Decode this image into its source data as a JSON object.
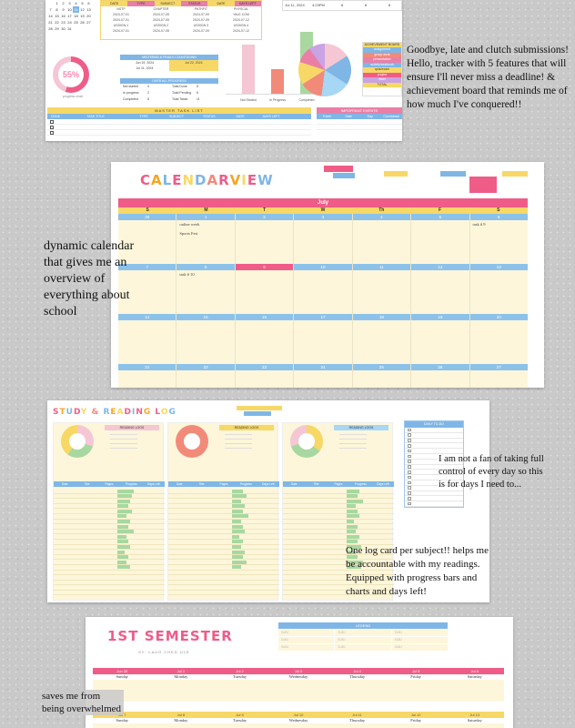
{
  "captions": {
    "tracker": "Goodbye, late and clutch submissions! Hello, tracker with 5 features that will ensure I'll never miss a deadline! & achievement board that reminds me of how much I've conquered!!",
    "calendar": "dynamic calendar that gives me an overview of everything about school",
    "not_fan": "I am not a fan of taking full control of every day so this is for days I need to...",
    "log": "One log card per subject!! helps me be accountable with my readings. Equipped with progress bars and charts and days left!",
    "semester": "saves me from being overwhelmed"
  },
  "dashboard": {
    "progress_pct": "55%",
    "progress_caption": "progress chart",
    "countdown_title": "MIDTERMS & FINALS COUNTDOWN",
    "countdown_rows": [
      [
        "Jun 19, 2024",
        "Jul 22, 2024"
      ],
      [
        "Jul 11, 2024",
        ""
      ]
    ],
    "overall_title": "OVER ALL PROGRESS",
    "overall_rows": [
      [
        "Not started",
        "4",
        "Total Done",
        "5"
      ],
      [
        "In progress",
        "2",
        "Total Pending",
        "6"
      ],
      [
        "Completed",
        "5",
        "Total Tasks",
        "11"
      ]
    ],
    "master_title": "MASTER TASK LIST",
    "master_headers": [
      "DONE",
      "TASK TITLE",
      "TYPE",
      "SUBJECT",
      "STATUS",
      "DATE",
      "DAYS LEFT"
    ],
    "events_title": "IMPORTANT EVENTS",
    "events_headers": [
      "Event",
      "Date",
      "Day",
      "Countdown"
    ],
    "achievement_title": "ACHIEVEMENT BOARD",
    "achievement_items": [
      {
        "label": "assignment",
        "color": "#7fb6e6"
      },
      {
        "label": "group work",
        "color": "#f28a7a"
      },
      {
        "label": "presentation",
        "color": "#e97fa6"
      },
      {
        "label": "activity/seatwork",
        "color": "#7fb6e6"
      },
      {
        "label": "quiz/exam",
        "color": "#f7d866"
      },
      {
        "label": "project",
        "color": "#ef5c88"
      },
      {
        "label": "other",
        "color": "#c9a3e4"
      },
      {
        "label": "TOTAL",
        "color": "#f7d866"
      }
    ],
    "bar_labels": [
      "Not Started",
      "In Progress",
      "Completed"
    ],
    "bar_values": [
      4,
      2,
      5
    ],
    "assign_headers": [
      "DATE",
      "TYPE",
      "SUBJECT",
      "STATUS",
      "DATE",
      "DAYS LEFT"
    ],
    "assign_rows": [
      [
        "NSTP",
        "CHAPTER",
        "PATHFIT",
        "PHYSCAL"
      ],
      [
        "2024-07-01",
        "2024-07-05",
        "2024-07-09",
        "YALE.COM"
      ],
      [
        "2024-07-01",
        "2024-07-05",
        "2024-07-09",
        "2024-07-12"
      ],
      [
        "ASSIGN.1",
        "ASSIGN.2",
        "ASSIGN.3",
        "ASSIGN.4"
      ],
      [
        "2024-07-01",
        "2024-07-05",
        "2024-07-09",
        "2024-07-12"
      ]
    ],
    "mini_cal_rows": [
      [
        "",
        "1",
        "2",
        "3",
        "4",
        "5",
        "6"
      ],
      [
        "7",
        "8",
        "9",
        "10",
        "11",
        "12",
        "13"
      ],
      [
        "14",
        "15",
        "16",
        "17",
        "18",
        "19",
        "20"
      ],
      [
        "21",
        "22",
        "23",
        "24",
        "25",
        "26",
        "27"
      ],
      [
        "28",
        "29",
        "30",
        "31",
        "",
        "",
        ""
      ]
    ],
    "right_mini": [
      "Jul 11, 2024",
      "4:23PM",
      "8",
      "8",
      "8"
    ]
  },
  "calendar": {
    "title": "CALENDAR VIEW",
    "month": "July",
    "dow": [
      "S",
      "M",
      "T",
      "W",
      "Th",
      "F",
      "S"
    ],
    "weeks": [
      {
        "nums": [
          "30",
          "1",
          "2",
          "3",
          "4",
          "5",
          "6"
        ],
        "tasks": [
          "",
          "online week\nSports Fest",
          "",
          "",
          "",
          "",
          "task # 9"
        ],
        "pink": []
      },
      {
        "nums": [
          "7",
          "8",
          "9",
          "10",
          "11",
          "12",
          "13"
        ],
        "tasks": [
          "",
          "task # 10",
          "",
          "",
          "",
          "",
          ""
        ],
        "pink": [
          2
        ]
      },
      {
        "nums": [
          "14",
          "15",
          "16",
          "17",
          "18",
          "19",
          "20"
        ],
        "tasks": [
          "",
          "",
          "",
          "",
          "",
          "",
          ""
        ],
        "pink": []
      },
      {
        "nums": [
          "21",
          "22",
          "23",
          "24",
          "25",
          "26",
          "27"
        ],
        "tasks": [
          "",
          "",
          "",
          "",
          "",
          "",
          ""
        ],
        "pink": []
      }
    ]
  },
  "studylog": {
    "title": "STUDY & READING LOG",
    "todo_title": "DAILY TO-DO",
    "cards": [
      {
        "info_title": "READING LOGS",
        "info_color": "#f5c6d4",
        "donut": "conic-gradient(#f5c6d4 0 30%, #a8d8a0 30% 60%, #f7d866 60% 100%)"
      },
      {
        "info_title": "READING LOGS",
        "info_color": "#f7d866",
        "donut": "conic-gradient(#f28a7a 0 100%)"
      },
      {
        "info_title": "READING LOGS",
        "info_color": "#a6d7f5",
        "donut": "conic-gradient(#f7d866 0 35%, #a8d8a0 35% 70%, #f5c6d4 70% 100%)"
      }
    ],
    "log_headers": [
      "Date",
      "Title",
      "Pages",
      "Progress",
      "Days Left"
    ]
  },
  "semester": {
    "title": "1ST SEMESTER",
    "subtitle": "SY: LAUG CHED ULE",
    "legend_title": "LEGEND",
    "legend_items": [
      "SUBJ",
      "SUBJ",
      "SUBJ",
      "SUBJ",
      "SUBJ",
      "SUBJ",
      "SUBJ",
      "SUBJ",
      "SUBJ"
    ],
    "weeks": [
      {
        "label": "WEEK",
        "dates": [
          "Jun 30",
          "Jul 1",
          "Jul 2",
          "Jul 3",
          "Jul 4",
          "Jul 5",
          "Jul 6"
        ],
        "color": "#ef5c88"
      },
      {
        "label": "WEEK",
        "dates": [
          "Jul 7",
          "Jul 8",
          "Jul 9",
          "Jul 10",
          "Jul 11",
          "Jul 12",
          "Jul 13"
        ],
        "color": "#f7d866"
      }
    ],
    "days": [
      "Sunday",
      "Monday",
      "Tuesday",
      "Wednesday",
      "Thursday",
      "Friday",
      "Saturday"
    ]
  }
}
